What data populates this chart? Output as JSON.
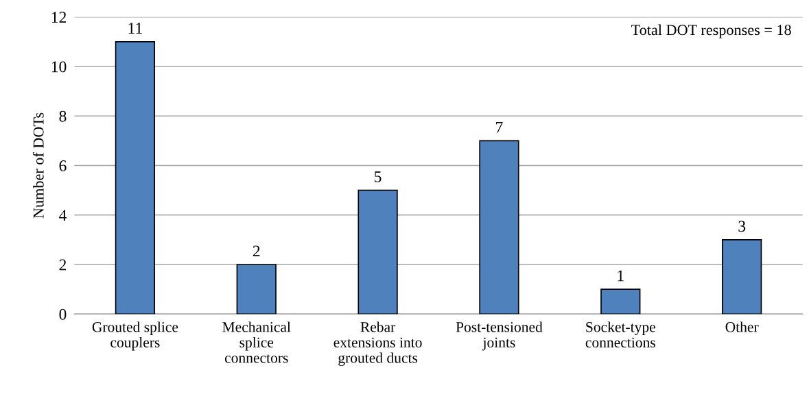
{
  "chart_data": {
    "type": "bar",
    "ylabel": "Number of DOTs",
    "categories": [
      "Grouted splice\ncouplers",
      "Mechanical\nsplice\nconnectors",
      "Rebar\nextensions into\ngrouted ducts",
      "Post-tensioned\njoints",
      "Socket-type\nconnections",
      "Other"
    ],
    "values": [
      11,
      2,
      5,
      7,
      1,
      3
    ],
    "color": "#4f81bd",
    "ylim": [
      0,
      12
    ],
    "yticks": [
      0,
      2,
      4,
      6,
      8,
      10,
      12
    ],
    "grid": "y",
    "data_labels": true,
    "legend": false,
    "annotations": [
      "Total DOT responses = 18"
    ]
  }
}
